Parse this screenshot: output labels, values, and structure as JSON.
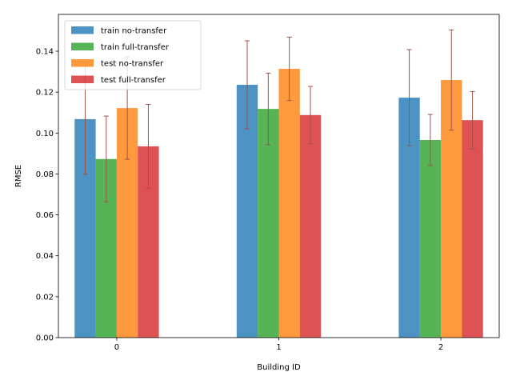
{
  "chart_data": {
    "type": "bar",
    "title": "",
    "xlabel": "Building ID",
    "ylabel": "RMSE",
    "categories": [
      "0",
      "1",
      "2"
    ],
    "ylim": [
      0,
      0.158
    ],
    "yticks": [
      "0.00",
      "0.02",
      "0.04",
      "0.06",
      "0.08",
      "0.10",
      "0.12",
      "0.14"
    ],
    "grid": false,
    "legend_position": "top-left",
    "errorbar_color": "#a0524a",
    "series": [
      {
        "name": "train no-transfer",
        "color": "#1f77b4",
        "values": [
          0.1068,
          0.1236,
          0.1173
        ],
        "errors": [
          0.027,
          0.0215,
          0.0235
        ]
      },
      {
        "name": "train full-transfer",
        "color": "#2ca02c",
        "values": [
          0.0873,
          0.1118,
          0.0966
        ],
        "errors": [
          0.021,
          0.0175,
          0.0125
        ]
      },
      {
        "name": "test no-transfer",
        "color": "#ff7f0e",
        "values": [
          0.1122,
          0.1314,
          0.1259
        ],
        "errors": [
          0.025,
          0.0155,
          0.0245
        ]
      },
      {
        "name": "test full-transfer",
        "color": "#d62728",
        "values": [
          0.0935,
          0.1088,
          0.1063
        ],
        "errors": [
          0.0205,
          0.014,
          0.014
        ]
      }
    ]
  }
}
